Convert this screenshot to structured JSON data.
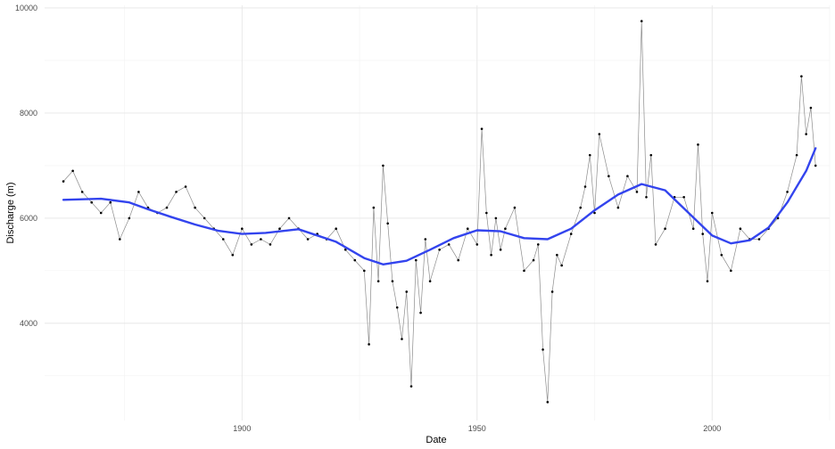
{
  "chart_data": {
    "type": "line",
    "title": "",
    "xlabel": "Date",
    "ylabel": "Discharge (m)",
    "x_ticks": [
      1900,
      1950,
      2000
    ],
    "y_ticks": [
      4000,
      6000,
      8000,
      10000
    ],
    "xlim": [
      1858,
      2025
    ],
    "ylim": [
      2150,
      10050
    ],
    "grid": true,
    "series": [
      {
        "style": "raw observations (points joined by thin gray line)",
        "color": "#000000",
        "line_color": "#8c8c8c",
        "x": [
          1862,
          1864,
          1866,
          1868,
          1870,
          1872,
          1874,
          1876,
          1878,
          1880,
          1882,
          1884,
          1886,
          1888,
          1890,
          1892,
          1894,
          1896,
          1898,
          1900,
          1902,
          1904,
          1906,
          1908,
          1910,
          1912,
          1914,
          1916,
          1918,
          1920,
          1922,
          1924,
          1926,
          1927,
          1928,
          1929,
          1930,
          1931,
          1932,
          1933,
          1934,
          1935,
          1936,
          1937,
          1938,
          1939,
          1940,
          1942,
          1944,
          1946,
          1948,
          1950,
          1951,
          1952,
          1953,
          1954,
          1955,
          1956,
          1958,
          1960,
          1962,
          1963,
          1964,
          1965,
          1966,
          1967,
          1968,
          1970,
          1972,
          1973,
          1974,
          1975,
          1976,
          1978,
          1980,
          1982,
          1984,
          1985,
          1986,
          1987,
          1988,
          1990,
          1992,
          1994,
          1996,
          1997,
          1998,
          1999,
          2000,
          2002,
          2004,
          2006,
          2008,
          2010,
          2012,
          2014,
          2016,
          2018,
          2019,
          2020,
          2021,
          2022
        ],
        "y": [
          6700,
          6900,
          6500,
          6300,
          6100,
          6300,
          5600,
          6000,
          6500,
          6200,
          6100,
          6200,
          6500,
          6600,
          6200,
          6000,
          5800,
          5600,
          5300,
          5800,
          5500,
          5600,
          5500,
          5800,
          6000,
          5800,
          5600,
          5700,
          5600,
          5800,
          5400,
          5200,
          5000,
          3600,
          6200,
          4800,
          7000,
          5900,
          4800,
          4300,
          3700,
          4600,
          2800,
          5200,
          4200,
          5600,
          4800,
          5400,
          5500,
          5200,
          5800,
          5500,
          7700,
          6100,
          5300,
          6000,
          5400,
          5800,
          6200,
          5000,
          5200,
          5500,
          3500,
          2500,
          4600,
          5300,
          5100,
          5700,
          6200,
          6600,
          7200,
          6100,
          7600,
          6800,
          6200,
          6800,
          6500,
          9750,
          6400,
          7200,
          5500,
          5800,
          6400,
          6400,
          5800,
          7400,
          5700,
          4800,
          6100,
          5300,
          5000,
          5800,
          5600,
          5600,
          5800,
          6000,
          6500,
          7200,
          8700,
          7600,
          8100,
          7000
        ]
      },
      {
        "style": "smoothed trend (LOESS)",
        "color": "#3344ee",
        "x": [
          1862,
          1870,
          1876,
          1880,
          1885,
          1890,
          1895,
          1900,
          1905,
          1912,
          1920,
          1926,
          1930,
          1935,
          1940,
          1945,
          1950,
          1955,
          1960,
          1965,
          1970,
          1975,
          1980,
          1985,
          1990,
          1995,
          2000,
          2004,
          2008,
          2012,
          2016,
          2020,
          2022
        ],
        "y": [
          6350,
          6370,
          6300,
          6170,
          6020,
          5880,
          5760,
          5700,
          5720,
          5790,
          5550,
          5240,
          5120,
          5190,
          5400,
          5620,
          5770,
          5750,
          5620,
          5600,
          5800,
          6150,
          6450,
          6650,
          6530,
          6100,
          5670,
          5520,
          5580,
          5820,
          6300,
          6900,
          7330
        ]
      }
    ]
  }
}
